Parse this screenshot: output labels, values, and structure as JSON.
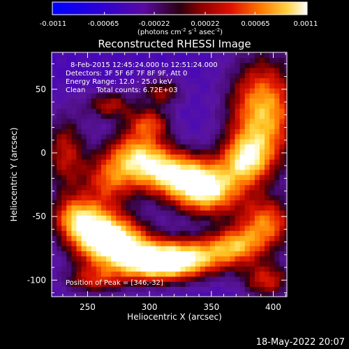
{
  "chart_data": {
    "type": "heatmap",
    "title": "Reconstructed RHESSI Image",
    "xlabel": "Heliocentric X (arcsec)",
    "ylabel": "Heliocentric Y (arcsec)",
    "xlim": [
      221,
      411
    ],
    "ylim": [
      -113,
      79
    ],
    "x_ticks": [
      250,
      300,
      350,
      400
    ],
    "y_ticks": [
      -100,
      -50,
      0,
      50
    ],
    "colorbar": {
      "range": [
        -0.0011,
        0.0011
      ],
      "ticks": [
        "-0.0011",
        "-0.00065",
        "-0.00022",
        "0.00022",
        "0.00065",
        "0.0011"
      ],
      "label": "(photons cm",
      "label_sup1": "-2",
      "label_mid": " s",
      "label_sup2": "-1",
      "label_mid2": " asec",
      "label_sup3": "-2",
      "label_end": ")"
    },
    "annotations": [
      "8-Feb-2015 12:45:24.000 to 12:51:24.000",
      "Detectors: 3F 5F 6F 7F 8F 9F, Att 0",
      "Energy Range: 12.0 - 25.0 keV",
      "Clean     Total counts: 6.72E+03"
    ],
    "peak_label": "Position of Peak = [346,-32]",
    "peak": [
      346,
      -32
    ],
    "blobs": [
      {
        "x": 346,
        "y": -30,
        "sx": 20,
        "sy": 14,
        "a": 1.0
      },
      {
        "x": 318,
        "y": -16,
        "sx": 24,
        "sy": 13,
        "a": 0.85
      },
      {
        "x": 290,
        "y": 0,
        "sx": 18,
        "sy": 14,
        "a": 0.75
      },
      {
        "x": 266,
        "y": -22,
        "sx": 14,
        "sy": 14,
        "a": 0.45
      },
      {
        "x": 258,
        "y": -65,
        "sx": 18,
        "sy": 16,
        "a": 0.95
      },
      {
        "x": 280,
        "y": -72,
        "sx": 18,
        "sy": 14,
        "a": 0.7
      },
      {
        "x": 240,
        "y": -50,
        "sx": 14,
        "sy": 12,
        "a": 0.55
      },
      {
        "x": 330,
        "y": -82,
        "sx": 26,
        "sy": 11,
        "a": 0.95
      },
      {
        "x": 305,
        "y": -88,
        "sx": 20,
        "sy": 10,
        "a": 0.7
      },
      {
        "x": 392,
        "y": 32,
        "sx": 20,
        "sy": 30,
        "a": 0.95
      },
      {
        "x": 378,
        "y": -5,
        "sx": 14,
        "sy": 14,
        "a": 0.7
      },
      {
        "x": 395,
        "y": -55,
        "sx": 16,
        "sy": 14,
        "a": 0.7
      },
      {
        "x": 370,
        "y": -72,
        "sx": 16,
        "sy": 10,
        "a": 0.6
      },
      {
        "x": 232,
        "y": 0,
        "sx": 12,
        "sy": 22,
        "a": 0.45
      },
      {
        "x": 268,
        "y": 38,
        "sx": 14,
        "sy": 8,
        "a": 0.4
      },
      {
        "x": 310,
        "y": 48,
        "sx": 12,
        "sy": 8,
        "a": 0.35
      },
      {
        "x": 300,
        "y": 24,
        "sx": 12,
        "sy": 8,
        "a": 0.45
      },
      {
        "x": 395,
        "y": -100,
        "sx": 14,
        "sy": 10,
        "a": 0.5
      },
      {
        "x": 255,
        "y": -100,
        "sx": 18,
        "sy": 8,
        "a": 0.35
      }
    ],
    "background_level": -0.45
  },
  "footer": {
    "date": "18-May-2022 20:07"
  }
}
